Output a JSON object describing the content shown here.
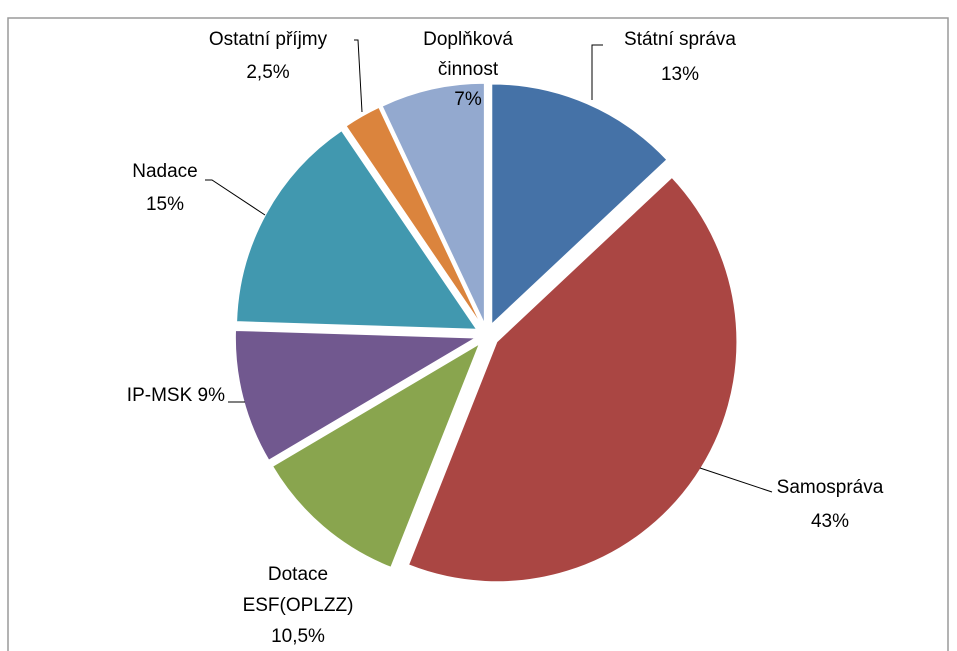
{
  "chart_data": {
    "type": "pie",
    "categories": [
      "Státní správa",
      "Samospráva",
      "Dotace ESF(OPLZZ)",
      "IP-MSK",
      "Nadace",
      "Ostatní příjmy",
      "Doplňková činnost"
    ],
    "values": [
      13,
      43,
      10.5,
      9,
      15,
      2.5,
      7
    ],
    "value_labels": [
      "13%",
      "43%",
      "10,5%",
      "9%",
      "15%",
      "2,5%",
      "7%"
    ],
    "colors": [
      "#4572a7",
      "#aa4643",
      "#89a54e",
      "#71588f",
      "#4198af",
      "#db843d",
      "#93a9cf"
    ]
  }
}
